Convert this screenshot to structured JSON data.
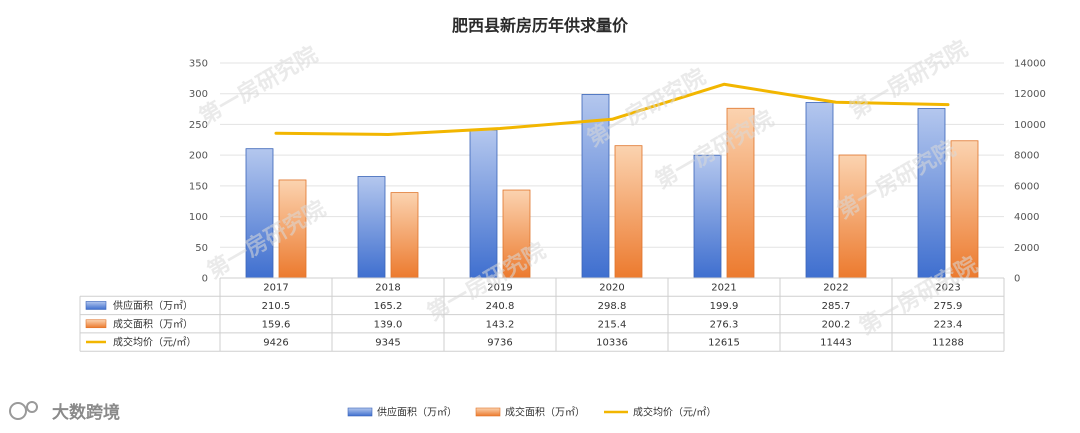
{
  "chart_data": {
    "type": "bar",
    "title": "肥西县新房历年供求量价",
    "categories": [
      "2017",
      "2018",
      "2019",
      "2020",
      "2021",
      "2022",
      "2023"
    ],
    "series": [
      {
        "name": "供应面积（万㎡）",
        "type": "bar",
        "axis": "left",
        "color": "#4472C4",
        "values": [
          210.5,
          165.2,
          240.8,
          298.8,
          199.9,
          285.7,
          275.9
        ],
        "labels": [
          "210.5",
          "165.2",
          "240.8",
          "298.8",
          "199.9",
          "285.7",
          "275.9"
        ]
      },
      {
        "name": "成交面积（万㎡）",
        "type": "bar",
        "axis": "left",
        "color": "#ED7D31",
        "values": [
          159.6,
          139.0,
          143.2,
          215.4,
          276.3,
          200.2,
          223.4
        ],
        "labels": [
          "159.6",
          "139.0",
          "143.2",
          "215.4",
          "276.3",
          "200.2",
          "223.4"
        ]
      },
      {
        "name": "成交均价（元/㎡）",
        "type": "line",
        "axis": "right",
        "color": "#F2B600",
        "values": [
          9426,
          9345,
          9736,
          10336,
          12615,
          11443,
          11288
        ],
        "labels": [
          "9426",
          "9345",
          "9736",
          "10336",
          "12615",
          "11443",
          "11288"
        ]
      }
    ],
    "y_left": {
      "min": 0,
      "max": 350,
      "step": 50,
      "ticks": [
        "0",
        "50",
        "100",
        "150",
        "200",
        "250",
        "300",
        "350"
      ]
    },
    "y_right": {
      "min": 0,
      "max": 14000,
      "step": 2000,
      "ticks": [
        "0",
        "2000",
        "4000",
        "6000",
        "8000",
        "10000",
        "12000",
        "14000"
      ]
    },
    "grid": true,
    "data_table": true,
    "legend_position": "bottom"
  },
  "watermark_text": "第一房研究院",
  "logo_text": "大数跨境"
}
